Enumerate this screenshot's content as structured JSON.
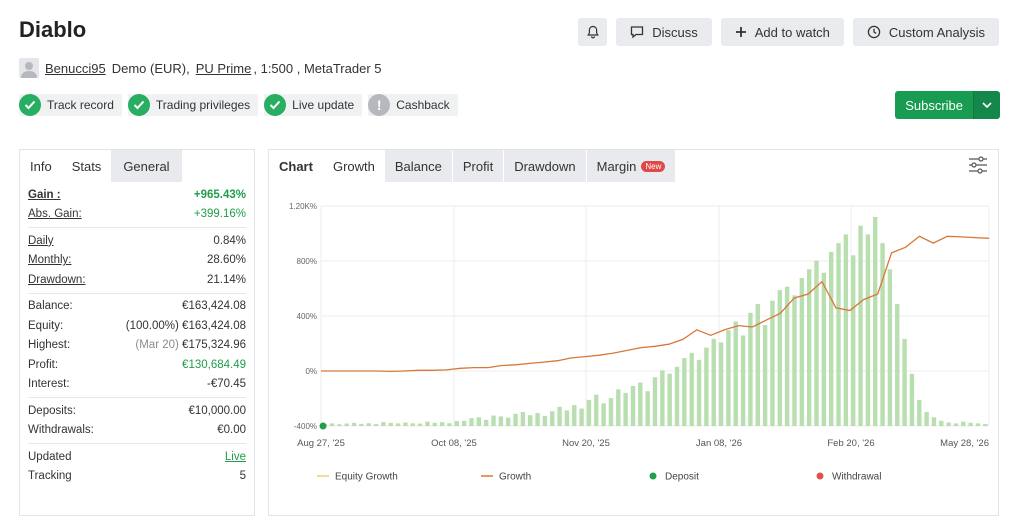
{
  "header": {
    "title": "Diablo",
    "actions": {
      "discuss": "Discuss",
      "add_to_watch": "Add to watch",
      "custom_analysis": "Custom Analysis"
    }
  },
  "owner": {
    "username": "Benucci95",
    "account": "Demo (EUR),",
    "broker": "PU Prime",
    "details": ", 1:500 , MetaTrader 5"
  },
  "badges": [
    {
      "label": "Track record",
      "status": "verified"
    },
    {
      "label": "Trading privileges",
      "status": "verified"
    },
    {
      "label": "Live update",
      "status": "verified"
    },
    {
      "label": "Cashback",
      "status": "info"
    }
  ],
  "subscribe": {
    "label": "Subscribe"
  },
  "left_panel": {
    "tabs": [
      "Info",
      "Stats",
      "General"
    ],
    "stats": {
      "gain": {
        "label": "Gain :",
        "value": "+965.43%"
      },
      "abs_gain": {
        "label": "Abs. Gain:",
        "value": "+399.16%"
      },
      "daily": {
        "label": "Daily",
        "value": "0.84%"
      },
      "monthly": {
        "label": "Monthly:",
        "value": "28.60%"
      },
      "drawdown": {
        "label": "Drawdown:",
        "value": "21.14%"
      },
      "balance": {
        "label": "Balance:",
        "value": "€163,424.08"
      },
      "equity": {
        "label": "Equity:",
        "pct": "(100.00%)",
        "value": "€163,424.08"
      },
      "highest": {
        "label": "Highest:",
        "date": "(Mar 20)",
        "value": "€175,324.96"
      },
      "profit": {
        "label": "Profit:",
        "value": "€130,684.49"
      },
      "interest": {
        "label": "Interest:",
        "value": "-€70.45"
      },
      "deposits": {
        "label": "Deposits:",
        "value": "€10,000.00"
      },
      "withdrawals": {
        "label": "Withdrawals:",
        "value": "€0.00"
      },
      "updated": {
        "label": "Updated",
        "value": "Live"
      },
      "tracking": {
        "label": "Tracking",
        "value": "5"
      }
    }
  },
  "right_panel": {
    "tabs": [
      "Chart",
      "Growth",
      "Balance",
      "Profit",
      "Drawdown",
      "Margin"
    ],
    "margin_badge": "New"
  },
  "colors": {
    "growth": "#d9773a",
    "bars": "#b9dfb0",
    "equity": "#e8d36a",
    "deposit": "#1fa04a",
    "withdrawal": "#e05050",
    "brand_green": "#179c52"
  },
  "chart_data": {
    "type": "line",
    "y_ticks": [
      "1.20K%",
      "800%",
      "400%",
      "0%",
      "-400%"
    ],
    "ylim": [
      -400,
      1200
    ],
    "x_ticks": [
      "Aug 27, '25",
      "Oct 08, '25",
      "Nov 20, '25",
      "Jan 08, '26",
      "Feb 20, '26",
      "May 28, '26"
    ],
    "legend": [
      "Equity Growth",
      "Growth",
      "Deposit",
      "Withdrawal"
    ],
    "grid": true,
    "series": [
      {
        "name": "Growth",
        "values": [
          0,
          0,
          0,
          0,
          0,
          -3,
          0,
          5,
          5,
          8,
          20,
          25,
          25,
          40,
          45,
          55,
          65,
          75,
          95,
          105,
          115,
          130,
          150,
          170,
          180,
          195,
          230,
          300,
          260,
          300,
          330,
          320,
          370,
          420,
          530,
          560,
          650,
          460,
          440,
          520,
          560,
          860,
          900,
          980,
          930,
          980,
          975,
          970,
          965
        ]
      }
    ],
    "bars_note": "daily trading activity bars",
    "bars": [
      12,
      15,
      10,
      14,
      18,
      12,
      16,
      11,
      22,
      18,
      15,
      20,
      16,
      14,
      25,
      18,
      22,
      16,
      28,
      30,
      45,
      50,
      35,
      60,
      55,
      48,
      70,
      80,
      62,
      75,
      58,
      85,
      110,
      90,
      120,
      100,
      150,
      180,
      130,
      160,
      210,
      190,
      230,
      250,
      200,
      280,
      320,
      300,
      340,
      390,
      420,
      380,
      450,
      500,
      480,
      550,
      600,
      520,
      650,
      700,
      580,
      720,
      780,
      800,
      750,
      850,
      900,
      950,
      880,
      1000,
      1050,
      1100,
      980,
      1150,
      1100,
      1200,
      1050,
      900,
      700,
      500,
      300,
      150,
      80,
      50,
      30,
      20,
      15,
      25,
      18,
      15,
      12
    ]
  }
}
